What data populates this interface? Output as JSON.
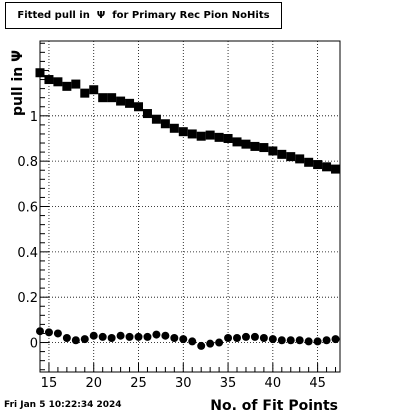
{
  "title": "Fitted pull in  Ψ  for Primary Rec Pion NoHits",
  "timestamp": "Fri Jan  5 10:22:34 2024",
  "chart_data": {
    "type": "scatter",
    "xlabel": "No. of Fit Points",
    "ylabel": "pull in  Ψ",
    "xlim": [
      14,
      47.5
    ],
    "ylim": [
      -0.13,
      1.33
    ],
    "x_ticks": [
      15,
      20,
      25,
      30,
      35,
      40,
      45
    ],
    "y_ticks": [
      0,
      0.2,
      0.4,
      0.6,
      0.8,
      1
    ],
    "x_tick_labels": [
      "15",
      "20",
      "25",
      "30",
      "35",
      "40",
      "45"
    ],
    "y_tick_labels": [
      "0",
      "0.2",
      "0.4",
      "0.6",
      "0.8",
      "1"
    ],
    "grid": true,
    "series": [
      {
        "marker": "square",
        "x": [
          14,
          15,
          16,
          17,
          18,
          19,
          20,
          21,
          22,
          23,
          24,
          25,
          26,
          27,
          28,
          29,
          30,
          31,
          32,
          33,
          34,
          35,
          36,
          37,
          38,
          39,
          40,
          41,
          42,
          43,
          44,
          45,
          46,
          47
        ],
        "y": [
          1.19,
          1.16,
          1.15,
          1.13,
          1.14,
          1.1,
          1.115,
          1.08,
          1.08,
          1.065,
          1.055,
          1.04,
          1.01,
          0.985,
          0.965,
          0.945,
          0.93,
          0.92,
          0.91,
          0.915,
          0.905,
          0.9,
          0.885,
          0.875,
          0.865,
          0.86,
          0.845,
          0.83,
          0.82,
          0.81,
          0.795,
          0.785,
          0.775,
          0.765
        ]
      },
      {
        "marker": "circle",
        "x": [
          14,
          15,
          16,
          17,
          18,
          19,
          20,
          21,
          22,
          23,
          24,
          25,
          26,
          27,
          28,
          29,
          30,
          31,
          32,
          33,
          34,
          35,
          36,
          37,
          38,
          39,
          40,
          41,
          42,
          43,
          44,
          45,
          46,
          47
        ],
        "y": [
          0.05,
          0.045,
          0.04,
          0.02,
          0.01,
          0.015,
          0.03,
          0.025,
          0.02,
          0.03,
          0.025,
          0.025,
          0.025,
          0.035,
          0.03,
          0.02,
          0.015,
          0.005,
          -0.015,
          -0.005,
          0.0,
          0.02,
          0.02,
          0.025,
          0.025,
          0.02,
          0.015,
          0.01,
          0.01,
          0.01,
          0.005,
          0.005,
          0.01,
          0.015
        ]
      }
    ]
  }
}
